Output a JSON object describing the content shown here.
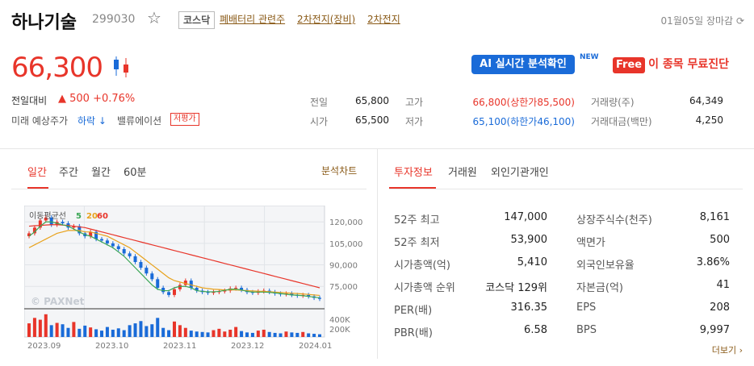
{
  "stock": {
    "name": "하나기술",
    "code": "299030",
    "market": "코스닥",
    "themes": [
      "폐배터리 관련주",
      "2차전지(장비)",
      "2차전지"
    ],
    "date_status": "01월05일 장마감",
    "price": "66,300",
    "change_label": "전일대비",
    "change": "▲ 500 +0.76%",
    "prediction_label": "미래 예상주가",
    "prediction_value": "하락 ↓",
    "valuation_label": "밸류에이션",
    "valuation_badge": "저평가"
  },
  "promo": {
    "ai_label": "AI 실시간 분석확인",
    "new_badge": "NEW",
    "free_badge": "Free",
    "free_text": "이 종목 무료진단"
  },
  "quote": {
    "prev_label": "전일",
    "prev_value": "65,800",
    "open_label": "시가",
    "open_value": "65,500",
    "high_label": "고가",
    "high_value": "66,800(상한가85,500)",
    "low_label": "저가",
    "low_value": "65,100(하한가46,100)",
    "volume_label": "거래량(주)",
    "volume_value": "64,349",
    "amount_label": "거래대금(백만)",
    "amount_value": "4,250"
  },
  "chart_tabs": {
    "items": [
      "일간",
      "주간",
      "월간",
      "60분"
    ],
    "analysis_link": "분석차트"
  },
  "info_tabs": {
    "items": [
      "투자정보",
      "거래원",
      "외인기관개인"
    ]
  },
  "invest_info": {
    "left": [
      {
        "label": "52주 최고",
        "value": "147,000"
      },
      {
        "label": "52주 최저",
        "value": "53,900"
      },
      {
        "label": "시가총액(억)",
        "value": "5,410"
      },
      {
        "label": "시가총액 순위",
        "value": "코스닥 129위"
      },
      {
        "label": "PER(배)",
        "value": "316.35"
      },
      {
        "label": "PBR(배)",
        "value": "6.58"
      }
    ],
    "right": [
      {
        "label": "상장주식수(천주)",
        "value": "8,161"
      },
      {
        "label": "액면가",
        "value": "500"
      },
      {
        "label": "외국인보유율",
        "value": "3.86%"
      },
      {
        "label": "자본금(억)",
        "value": "41"
      },
      {
        "label": "EPS",
        "value": "208"
      },
      {
        "label": "BPS",
        "value": "9,997"
      }
    ],
    "more": "더보기 ›"
  },
  "chart_data": {
    "type": "line",
    "legend": {
      "title": "이동평균선",
      "items": [
        "5",
        "20",
        "60"
      ]
    },
    "legend_colors": {
      "ma5": "#3aa655",
      "ma20": "#e8a21c",
      "ma60": "#e8352a"
    },
    "watermark": "© PAXNet",
    "x_ticks": [
      "2023.09",
      "2023.10",
      "2023.11",
      "2023.12",
      "2024.01"
    ],
    "y_ticks": [
      "120,000",
      "105,000",
      "90,000",
      "75,000"
    ],
    "volume_ticks": [
      "400K",
      "200K"
    ],
    "ylim": [
      65000,
      128000
    ],
    "close": [
      112000,
      116000,
      121000,
      123000,
      118000,
      120000,
      119000,
      116000,
      117000,
      112000,
      110000,
      113000,
      108000,
      107000,
      105000,
      103000,
      101000,
      98000,
      96000,
      92000,
      88000,
      84000,
      80000,
      74000,
      71000,
      69000,
      73000,
      76000,
      79000,
      74000,
      72000,
      71000,
      70500,
      71000,
      71500,
      72000,
      73500,
      74000,
      72500,
      71000,
      70500,
      71500,
      72000,
      71000,
      70000,
      69500,
      70000,
      69000,
      68500,
      69000,
      68000,
      67000,
      66300
    ],
    "ma5": [
      110000,
      113000,
      117000,
      120000,
      120000,
      119000,
      118000,
      117000,
      115000,
      113000,
      111000,
      110000,
      108000,
      106000,
      104000,
      102000,
      99000,
      96000,
      92000,
      88000,
      84000,
      80000,
      76000,
      73000,
      72000,
      72000,
      74000,
      75000,
      75000,
      74000,
      72000,
      71500,
      71200,
      71200,
      71500,
      72200,
      73000,
      73000,
      72500,
      71500,
      71000,
      71000,
      71000,
      70800,
      70500,
      70000,
      69500,
      69000,
      68800,
      68500,
      68000,
      67500,
      67000
    ],
    "ma20": [
      102000,
      104000,
      106000,
      108000,
      110000,
      112000,
      113000,
      114000,
      114000,
      114000,
      113000,
      113000,
      112000,
      111000,
      110000,
      108000,
      106000,
      104000,
      102000,
      99000,
      96000,
      93000,
      90000,
      87000,
      84000,
      81000,
      79000,
      78000,
      77000,
      76000,
      75000,
      74000,
      73500,
      73000,
      72800,
      72500,
      72500,
      72500,
      72300,
      72000,
      71800,
      71600,
      71500,
      71300,
      71000,
      70800,
      70500,
      70200,
      70000,
      69700,
      69400,
      69000,
      68700
    ],
    "ma60": [
      117000,
      117300,
      117500,
      117800,
      118000,
      118000,
      117800,
      117500,
      117000,
      116500,
      116000,
      115000,
      114000,
      113000,
      112000,
      111000,
      110000,
      109000,
      108000,
      107000,
      106000,
      105000,
      104000,
      103000,
      102000,
      101000,
      100000,
      99000,
      98000,
      97000,
      96000,
      95000,
      94000,
      93000,
      92000,
      91000,
      90000,
      89000,
      88000,
      87000,
      86000,
      85000,
      84000,
      83000,
      82000,
      81000,
      80000,
      79000,
      78000,
      77000,
      76000,
      75000,
      74000
    ],
    "volume": [
      300,
      420,
      380,
      500,
      260,
      310,
      280,
      200,
      330,
      180,
      250,
      210,
      170,
      140,
      220,
      160,
      190,
      150,
      260,
      300,
      350,
      240,
      280,
      420,
      200,
      150,
      340,
      260,
      200,
      140,
      120,
      110,
      100,
      150,
      180,
      120,
      160,
      220,
      130,
      100,
      90,
      140,
      160,
      110,
      90,
      80,
      120,
      100,
      90,
      110,
      80,
      70,
      60
    ]
  }
}
